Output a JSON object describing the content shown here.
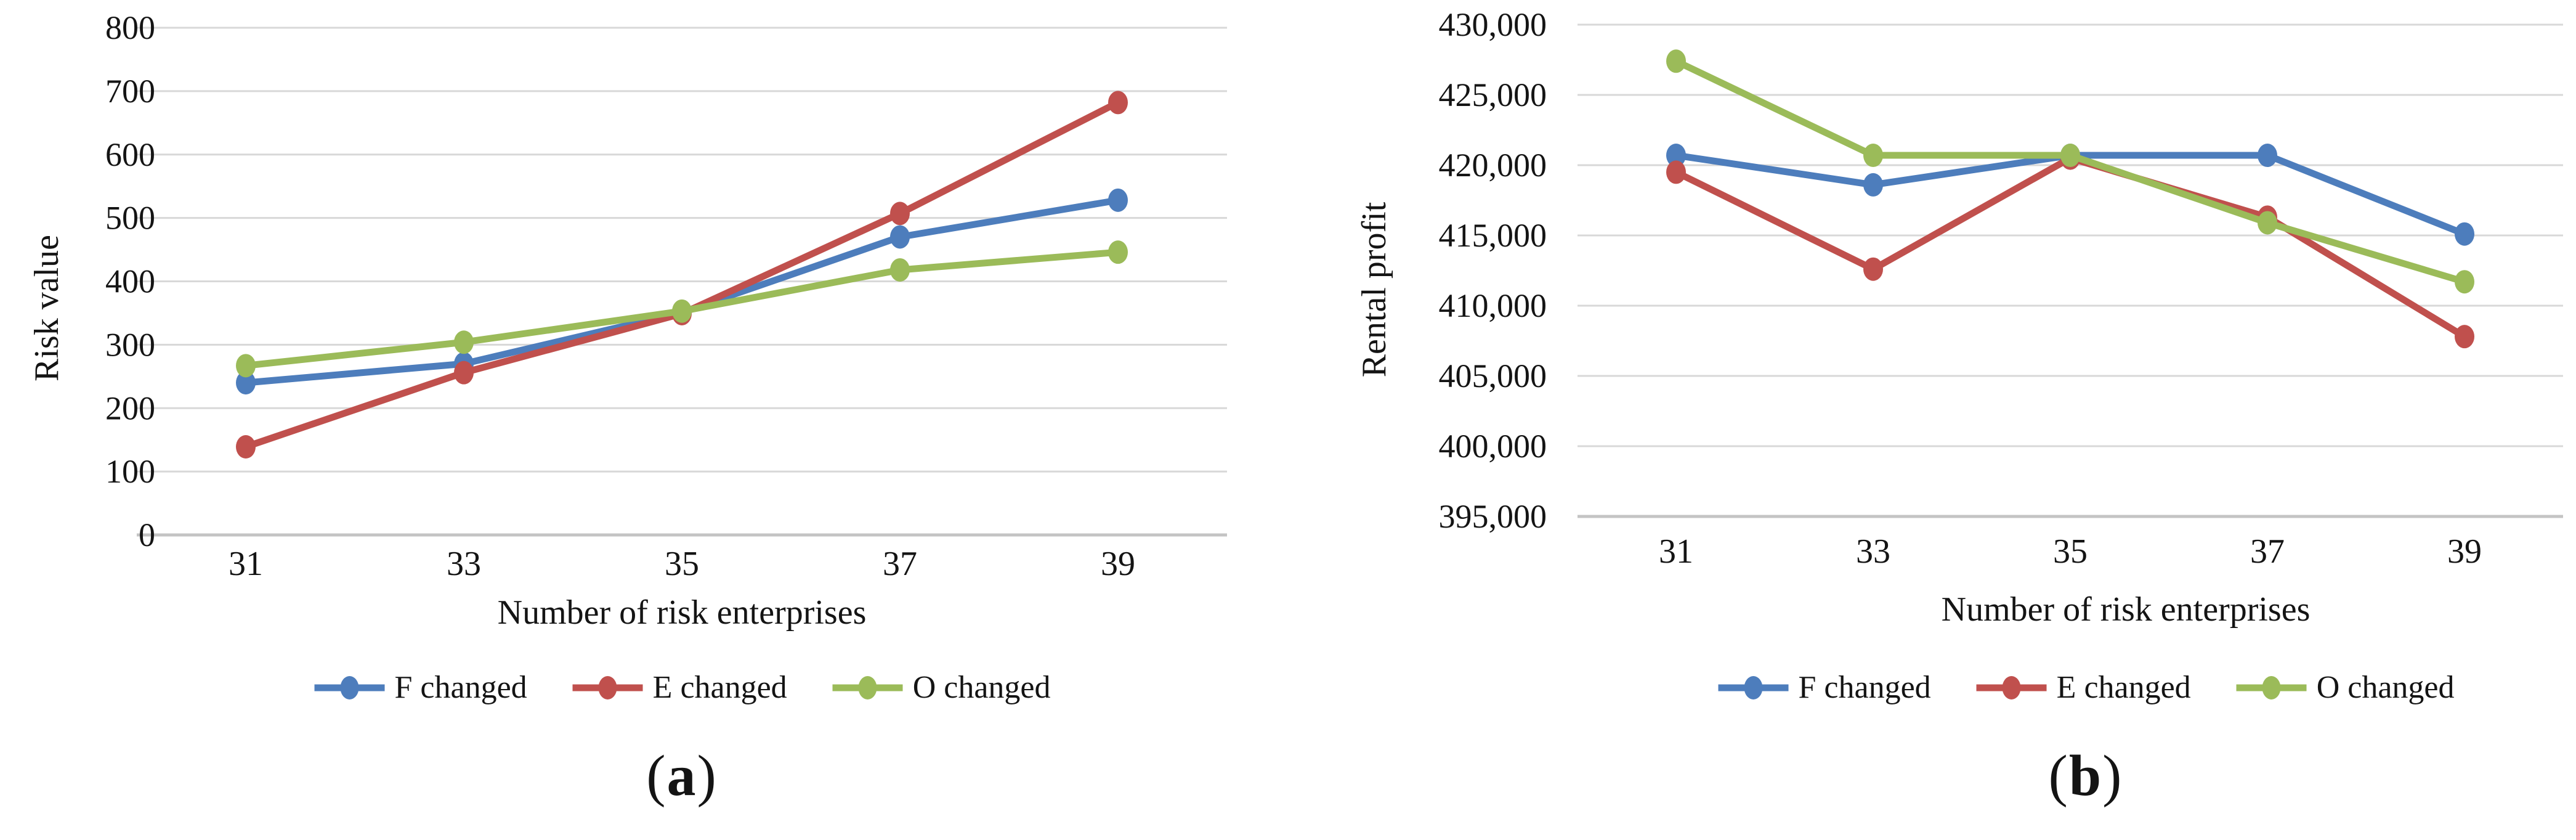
{
  "grid_color": "#D8D8D8",
  "axis_color": "#C4C4C4",
  "text_color": "#141414",
  "chart_data": [
    {
      "id": "a",
      "type": "line",
      "title": "",
      "xlabel": "Number of risk enterprises",
      "ylabel": "Risk value",
      "categories": [
        "31",
        "33",
        "35",
        "37",
        "39"
      ],
      "yticks": [
        "0",
        "100",
        "200",
        "300",
        "400",
        "500",
        "600",
        "700",
        "800"
      ],
      "ylim": [
        0,
        800
      ],
      "grid": true,
      "legend_position": "bottom",
      "caption": {
        "open": "(",
        "letter": "a",
        "close": ")"
      },
      "series": [
        {
          "name": "F changed",
          "color": "#4D7DBC",
          "values": [
            240,
            270,
            351,
            470,
            528
          ]
        },
        {
          "name": "E changed",
          "color": "#C0504D",
          "values": [
            139,
            256,
            349,
            507,
            682
          ]
        },
        {
          "name": "O changed",
          "color": "#9BBB59",
          "values": [
            267,
            304,
            353,
            418,
            446
          ]
        }
      ]
    },
    {
      "id": "b",
      "type": "line",
      "title": "",
      "xlabel": "Number of risk enterprises",
      "ylabel": "Rental profit",
      "categories": [
        "31",
        "33",
        "35",
        "37",
        "39"
      ],
      "yticks": [
        "395,000",
        "400,000",
        "405,000",
        "410,000",
        "415,000",
        "420,000",
        "425,000",
        "430,000"
      ],
      "ylim": [
        395000,
        430000
      ],
      "grid": true,
      "legend_position": "bottom",
      "caption": {
        "open": "(",
        "letter": "b",
        "close": ")"
      },
      "series": [
        {
          "name": "F changed",
          "color": "#4D7DBC",
          "values": [
            420700,
            418600,
            420700,
            420700,
            415100
          ]
        },
        {
          "name": "E changed",
          "color": "#C0504D",
          "values": [
            419500,
            412600,
            420500,
            416300,
            407800
          ]
        },
        {
          "name": "O changed",
          "color": "#9BBB59",
          "values": [
            427400,
            420700,
            420700,
            415900,
            411700
          ]
        }
      ]
    }
  ]
}
